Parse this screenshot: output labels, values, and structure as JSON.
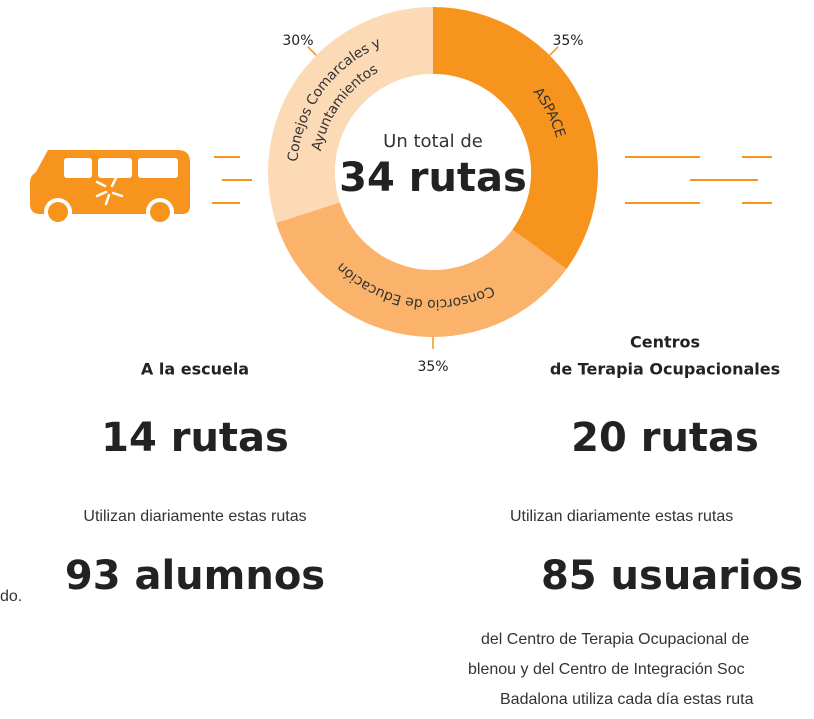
{
  "chart_data": {
    "type": "pie",
    "categories": [
      [
        "ASPACE"
      ],
      [
        "Consorcio de Educación"
      ],
      [
        "Conejos Comarcales y",
        "Ayuntamientos"
      ]
    ],
    "values": [
      35,
      35,
      30
    ],
    "value_labels": [
      "35%",
      "35%",
      "30%"
    ],
    "colors": [
      "#f7941d",
      "#fbb36b",
      "#fddab6"
    ],
    "center_text": [
      "Un total de",
      "34 rutas"
    ]
  },
  "left_column": {
    "heading": "A la escuela",
    "routes": "14 rutas",
    "caption": "Utilizan diariamente estas rutas",
    "count": "93 alumnos",
    "fragment": "do."
  },
  "right_column": {
    "heading": [
      "Centros",
      "de Terapia Ocupacionales"
    ],
    "routes": "20 rutas",
    "caption": "Utilizan diariamente estas rutas",
    "count": "85 usuarios",
    "description": [
      "del Centro de Terapia Ocupacional de",
      "blenou y del Centro de Integración Soc",
      "Badalona utiliza cada día estas ruta"
    ]
  }
}
